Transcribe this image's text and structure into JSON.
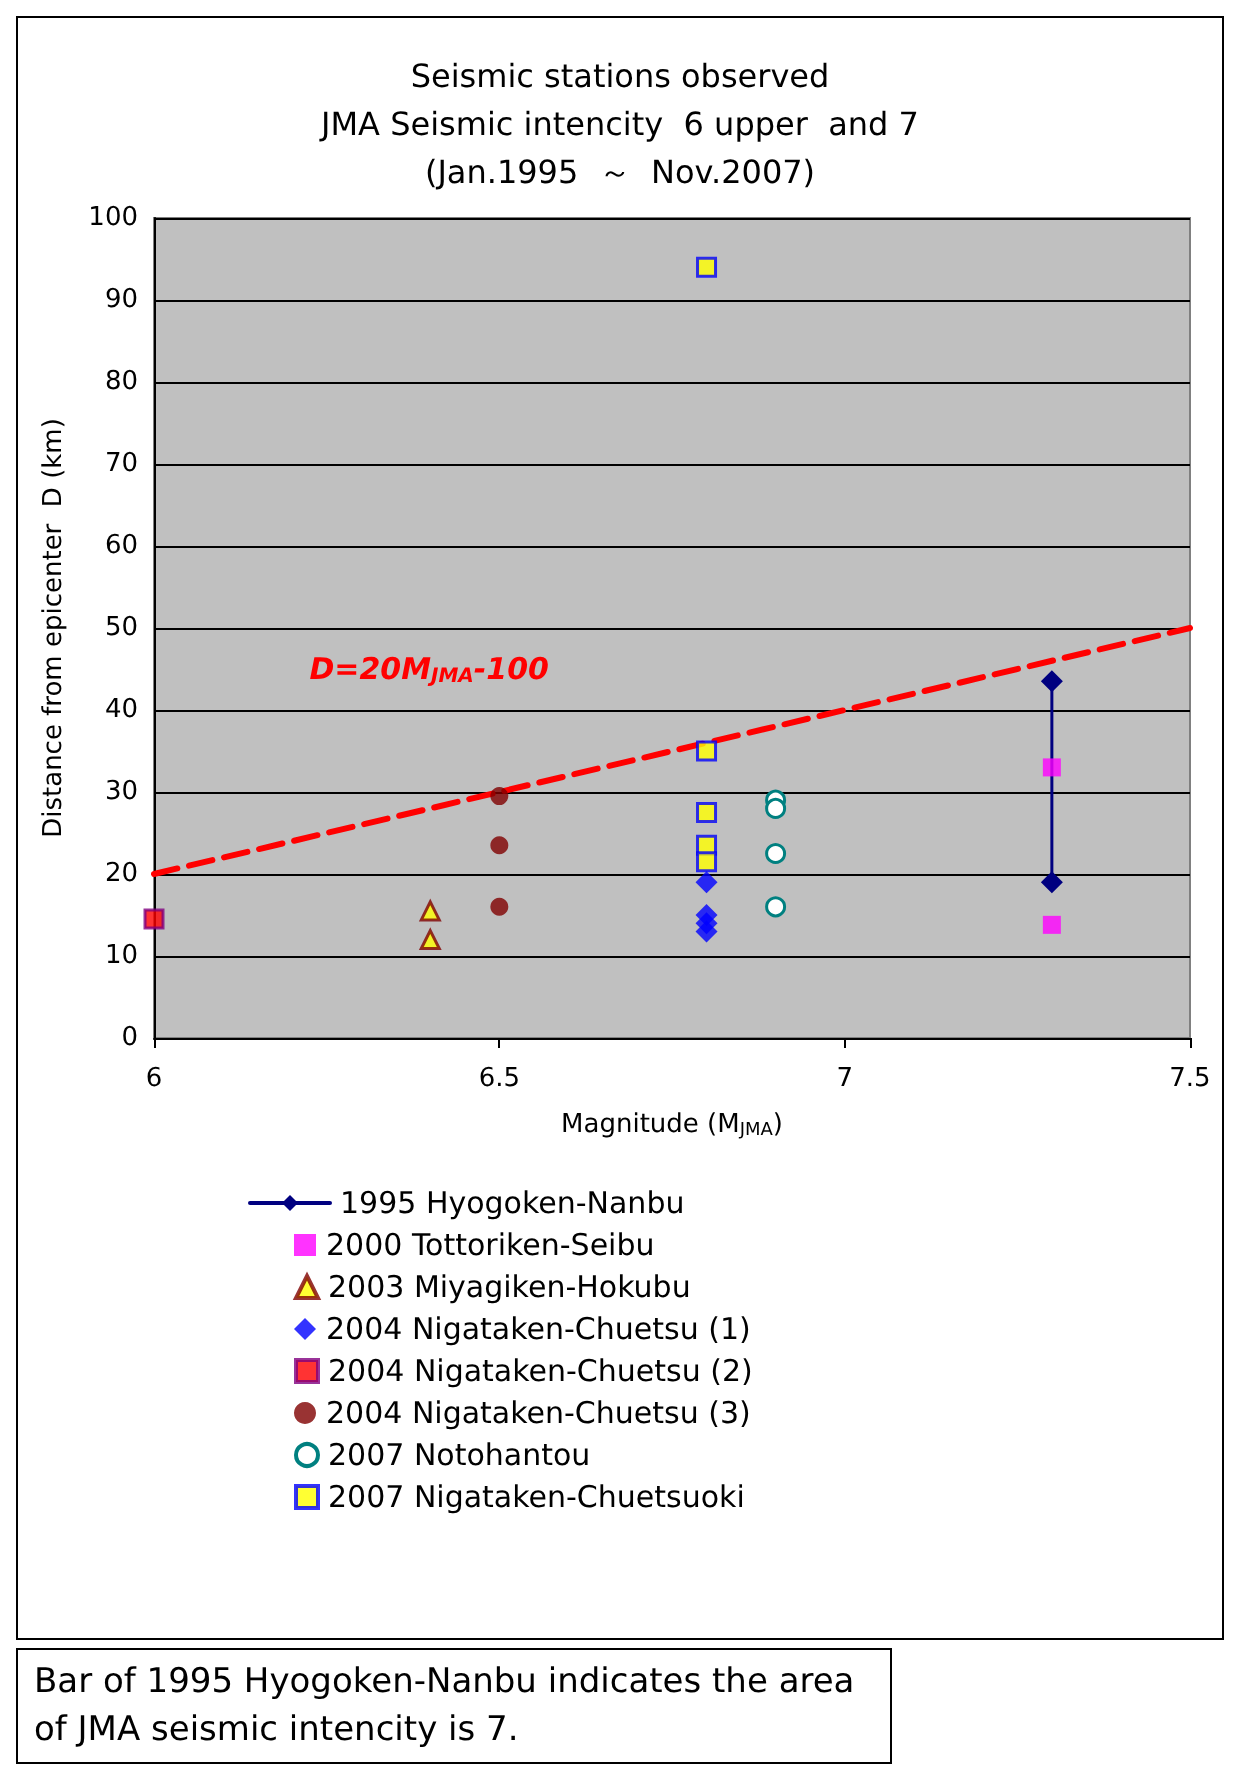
{
  "chart_data": {
    "type": "scatter",
    "title": "Seismic stations observed\nJMA Seismic intencity  6 upper  and 7\n(Jan.1995  ～  Nov.2007)",
    "xlabel": "Magnitude (M$_{JMA}$)",
    "ylabel": "Distance from epicenter  D (km)",
    "xlim": [
      6,
      7.5
    ],
    "xticks": [
      6,
      6.5,
      7,
      7.5
    ],
    "ylim": [
      0,
      100
    ],
    "yticks": [
      0,
      10,
      20,
      30,
      40,
      50,
      60,
      70,
      80,
      90,
      100
    ],
    "grid": "y",
    "legend": "bottom",
    "series": [
      {
        "name": "1995 Hyogoken-Nanbu",
        "type": "line",
        "marker": "diamond",
        "color": "#000080",
        "x": [
          7.3,
          7.3
        ],
        "values": [
          43.5,
          19
        ]
      },
      {
        "name": "2000 Tottoriken-Seibu",
        "marker": "square",
        "color": "#ff00ff",
        "x": [
          7.3,
          7.3
        ],
        "values": [
          33,
          13.8
        ]
      },
      {
        "name": "2003 Miyagiken-Hokubu",
        "marker": "triangle",
        "color": "#ffff00",
        "x": [
          6.4,
          6.4
        ],
        "values": [
          15.5,
          12
        ]
      },
      {
        "name": "2004 Nigataken-Chuetsu (1)",
        "marker": "diamond",
        "color": "#0000ff",
        "x": [
          6.8,
          6.8,
          6.8,
          6.8
        ],
        "values": [
          19,
          15,
          14,
          13
        ]
      },
      {
        "name": "2004 Nigataken-Chuetsu (2)",
        "marker": "square",
        "color": "#ff0000",
        "x": [
          6
        ],
        "values": [
          14.5
        ]
      },
      {
        "name": "2004 Nigataken-Chuetsu (3)",
        "marker": "circle",
        "color": "#800000",
        "x": [
          6.5,
          6.5,
          6.5
        ],
        "values": [
          29.5,
          23.5,
          16
        ]
      },
      {
        "name": "2007 Notohantou",
        "marker": "circle",
        "color": "#008080",
        "x": [
          6.9,
          6.9,
          6.9,
          6.9
        ],
        "values": [
          29,
          28,
          22.5,
          16
        ]
      },
      {
        "name": "2007 Nigataken-Chuetsuoki",
        "marker": "square",
        "color": "#ffff00",
        "x": [
          6.8,
          6.8,
          6.8,
          6.8,
          6.8
        ],
        "values": [
          94,
          35,
          27.5,
          23.5,
          21.5
        ]
      },
      {
        "type": "line",
        "marker": "none",
        "line_style": "dashed",
        "color": "#ff0000",
        "x": [
          6,
          7.5
        ],
        "values": [
          20,
          50
        ]
      }
    ],
    "annotations": [
      "D=20M$_{JMA}$-100",
      "Bar of 1995 Hyogoken-Nanbu indicates the area of JMA seismic intencity is 7."
    ]
  }
}
